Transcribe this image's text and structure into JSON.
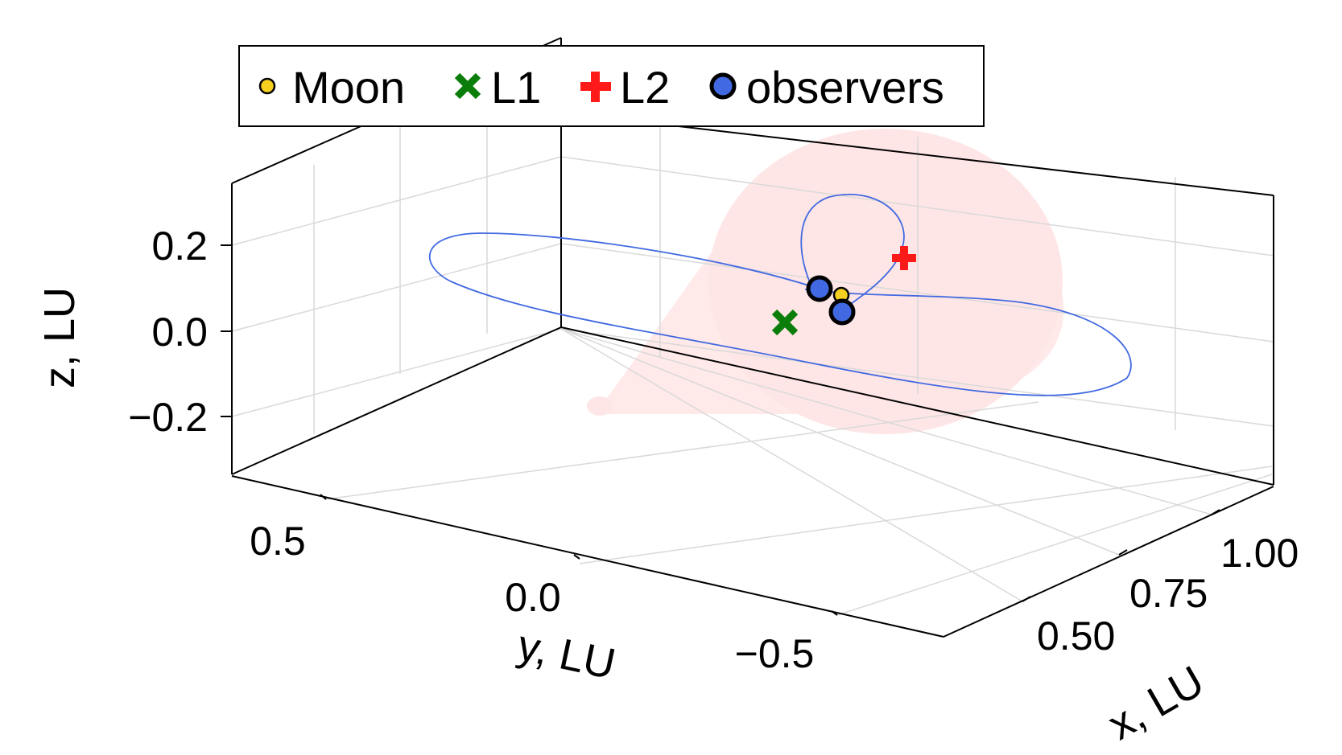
{
  "chart_data": {
    "type": "scatter",
    "projection": "3d",
    "title": "",
    "xlabel": "x, LU",
    "ylabel": "y, LU",
    "zlabel": "z, LU",
    "x_ticks": [
      "0.50",
      "0.75",
      "1.00"
    ],
    "y_ticks": [
      "0.5",
      "0.0",
      "−0.5"
    ],
    "z_ticks": [
      "0.2",
      "0.0",
      "−0.2"
    ],
    "grid": true,
    "legend_position": "top-left",
    "legend": [
      {
        "label": "Moon",
        "marker": "circle",
        "color": "#f5d020"
      },
      {
        "label": "L1",
        "marker": "x",
        "color": "#0a7d0a"
      },
      {
        "label": "L2",
        "marker": "cross",
        "color": "#ff1a1a"
      },
      {
        "label": "observers",
        "marker": "circle",
        "color": "#4169e1"
      }
    ],
    "points": {
      "Moon": [
        {
          "x": 0.99,
          "y": 0.0,
          "z": 0.0
        }
      ],
      "L1": [
        {
          "x": 0.84,
          "y": 0.0,
          "z": 0.0
        }
      ],
      "L2": [
        {
          "x": 1.16,
          "y": 0.0,
          "z": 0.0
        }
      ],
      "observers": [
        {
          "x": 0.98,
          "y": 0.02,
          "z": 0.05
        },
        {
          "x": 0.99,
          "y": -0.02,
          "z": -0.06
        }
      ]
    },
    "orbit_color": "#4169e1",
    "cone_color": "#ffe6e6"
  }
}
